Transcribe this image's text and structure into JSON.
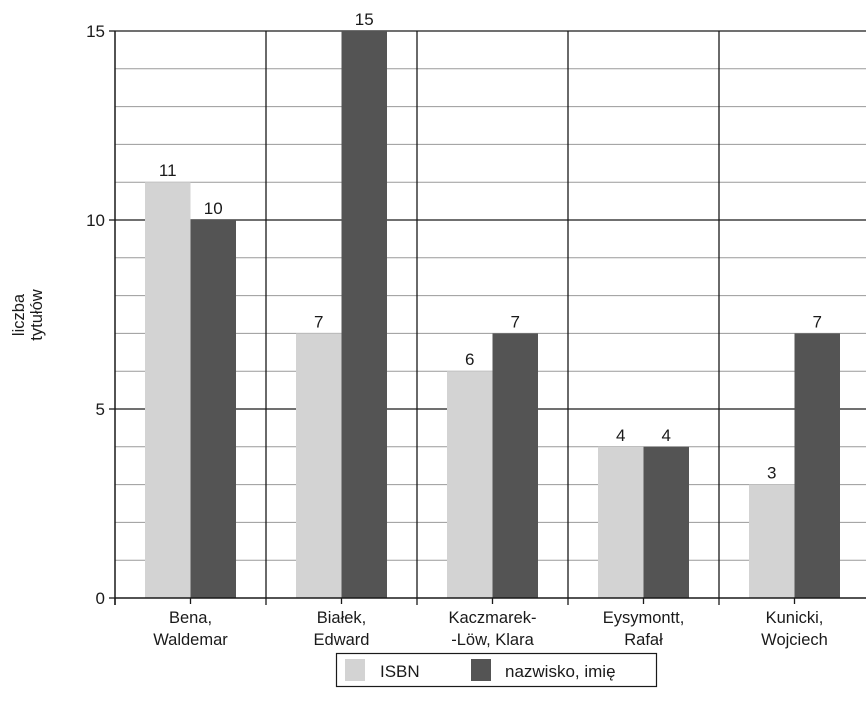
{
  "chart_data": {
    "type": "bar",
    "title": "",
    "xlabel": "",
    "ylabel_lines": [
      "liczba",
      "tytułów"
    ],
    "ylim": [
      0,
      15
    ],
    "yticks": [
      0,
      5,
      10,
      15
    ],
    "minor_grid_step": 1,
    "grid": true,
    "legend_position": "bottom-center",
    "categories": [
      [
        "Bena,",
        "Waldemar"
      ],
      [
        "Białek,",
        "Edward"
      ],
      [
        "Kaczmarek-",
        "-Löw, Klara"
      ],
      [
        "Eysymontt,",
        "Rafał"
      ],
      [
        "Kunicki,",
        "Wojciech"
      ]
    ],
    "series": [
      {
        "name": "ISBN",
        "color": "#d3d3d3",
        "values": [
          11,
          7,
          6,
          4,
          3
        ]
      },
      {
        "name": "nazwisko, imię",
        "color": "#545454",
        "values": [
          10,
          15,
          7,
          4,
          7
        ]
      }
    ],
    "data_labels": true
  }
}
